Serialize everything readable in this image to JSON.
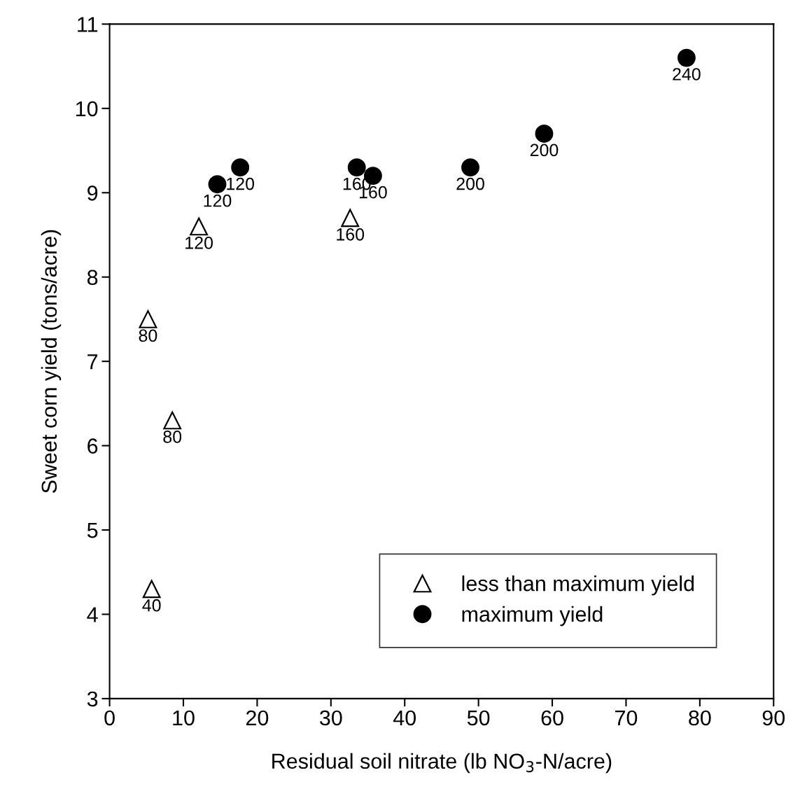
{
  "chart_data": {
    "type": "scatter",
    "xlabel": "Residual soil nitrate (lb NO$_{3}$-N/acre)",
    "ylabel": "Sweet corn yield (tons/acre)",
    "xlim": [
      0,
      90
    ],
    "xticks": [
      0,
      10,
      20,
      30,
      40,
      50,
      60,
      70,
      80,
      90
    ],
    "ylim": [
      3,
      11
    ],
    "yticks": [
      3,
      4,
      5,
      6,
      7,
      8,
      9,
      10,
      11
    ],
    "grid": false,
    "legend": "bottom right",
    "series": [
      {
        "name": "less than maximum yield",
        "color": "#000000",
        "marker": "triangle",
        "x": [
          5.2,
          8.5,
          5.7,
          12.1,
          32.6
        ],
        "values": [
          7.5,
          6.3,
          4.3,
          8.6,
          8.7
        ]
      },
      {
        "name": "maximum yield",
        "color": "#000000",
        "marker": "circle",
        "x": [
          14.6,
          17.7,
          33.5,
          35.7,
          48.9,
          58.9,
          78.2
        ],
        "values": [
          9.1,
          9.3,
          9.3,
          9.2,
          9.3,
          9.7,
          10.6
        ]
      }
    ],
    "annotations": [
      {
        "text": "80",
        "x": 5.2,
        "y": 7.5
      },
      {
        "text": "80",
        "x": 8.5,
        "y": 6.3
      },
      {
        "text": "40",
        "x": 5.7,
        "y": 4.3
      },
      {
        "text": "120",
        "x": 12.1,
        "y": 8.6
      },
      {
        "text": "160",
        "x": 32.6,
        "y": 8.7
      },
      {
        "text": "120",
        "x": 14.6,
        "y": 9.1
      },
      {
        "text": "120",
        "x": 17.7,
        "y": 9.3
      },
      {
        "text": "160",
        "x": 33.5,
        "y": 9.3
      },
      {
        "text": "160",
        "x": 35.7,
        "y": 9.2
      },
      {
        "text": "200",
        "x": 48.9,
        "y": 9.3
      },
      {
        "text": "200",
        "x": 58.9,
        "y": 9.7
      },
      {
        "text": "240",
        "x": 78.2,
        "y": 10.6
      }
    ]
  }
}
